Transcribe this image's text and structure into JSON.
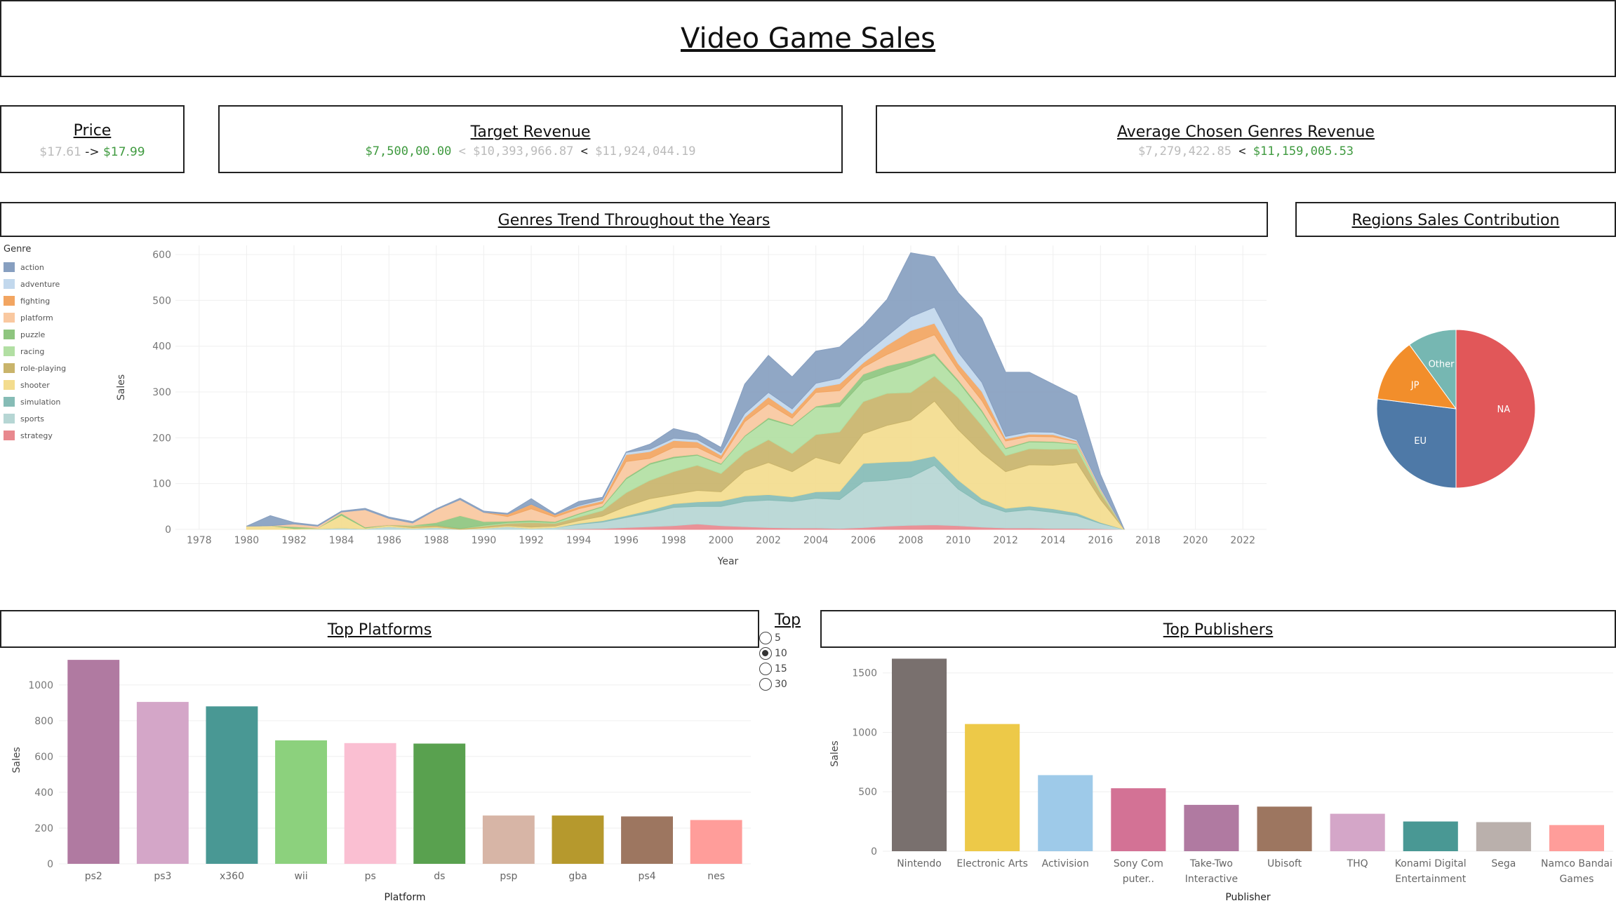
{
  "header": {
    "title": "Video Game Sales"
  },
  "kpi": {
    "price": {
      "title": "Price",
      "old": "$17.61",
      "arrow": "->",
      "new": "$17.99"
    },
    "target": {
      "title": "Target Revenue",
      "target": "$7,500,00.00",
      "lt1": "<",
      "old": "$10,393,966.87",
      "lt2": "<",
      "new": "$11,924,044.19"
    },
    "average": {
      "title": "Average Chosen Genres Revenue",
      "old": "$7,279,422.85",
      "lt": "<",
      "new": "$11,159,005.53"
    }
  },
  "genres_panel": {
    "title": "Genres Trend Throughout the Years",
    "legend_title": "Genre"
  },
  "regions_panel": {
    "title": "Regions Sales Contribution"
  },
  "platforms_panel": {
    "title": "Top Platforms"
  },
  "publishers_panel": {
    "title": "Top Publishers"
  },
  "top_selector": {
    "title": "Top",
    "options": [
      {
        "label": "5",
        "selected": false
      },
      {
        "label": "10",
        "selected": true
      },
      {
        "label": "15",
        "selected": false
      },
      {
        "label": "30",
        "selected": false
      }
    ]
  },
  "chart_data": [
    {
      "id": "genres",
      "type": "area",
      "stacked": true,
      "xlabel": "Year",
      "ylabel": "Sales",
      "xlim": [
        1977,
        2023
      ],
      "ylim": [
        0,
        620
      ],
      "xticks": [
        1978,
        1980,
        1982,
        1984,
        1986,
        1988,
        1990,
        1992,
        1994,
        1996,
        1998,
        2000,
        2002,
        2004,
        2006,
        2008,
        2010,
        2012,
        2014,
        2016,
        2018,
        2020,
        2022
      ],
      "yticks": [
        0,
        100,
        200,
        300,
        400,
        500,
        600
      ],
      "x": [
        1980,
        1981,
        1982,
        1983,
        1984,
        1985,
        1986,
        1987,
        1988,
        1989,
        1990,
        1991,
        1992,
        1993,
        1994,
        1995,
        1996,
        1997,
        1998,
        1999,
        2000,
        2001,
        2002,
        2003,
        2004,
        2005,
        2006,
        2007,
        2008,
        2009,
        2010,
        2011,
        2012,
        2013,
        2014,
        2015,
        2016,
        2017
      ],
      "series": [
        {
          "name": "strategy",
          "color": "#e8888e",
          "values": [
            0,
            0,
            0,
            0,
            0,
            0,
            0,
            0,
            0,
            0,
            0,
            0,
            0,
            0,
            1,
            2,
            4,
            6,
            8,
            12,
            8,
            6,
            4,
            3,
            3,
            2,
            4,
            7,
            9,
            10,
            8,
            5,
            3,
            3,
            2,
            2,
            1,
            0
          ]
        },
        {
          "name": "sports",
          "color": "#b6d6d4",
          "values": [
            0,
            0,
            0,
            1,
            3,
            1,
            6,
            2,
            4,
            0,
            2,
            6,
            2,
            4,
            10,
            14,
            22,
            30,
            40,
            38,
            42,
            55,
            60,
            58,
            65,
            63,
            100,
            100,
            105,
            130,
            80,
            50,
            35,
            40,
            35,
            28,
            12,
            0
          ]
        },
        {
          "name": "simulation",
          "color": "#86bcb6",
          "values": [
            0,
            0,
            0,
            0,
            0,
            0,
            0,
            0,
            0,
            0,
            0,
            0,
            0,
            0,
            2,
            3,
            4,
            6,
            8,
            10,
            12,
            12,
            12,
            10,
            14,
            18,
            40,
            40,
            35,
            20,
            20,
            12,
            8,
            8,
            8,
            6,
            2,
            0
          ]
        },
        {
          "name": "shooter",
          "color": "#f3dc8e",
          "values": [
            7,
            8,
            2,
            2,
            28,
            2,
            3,
            2,
            2,
            0,
            2,
            2,
            3,
            3,
            6,
            10,
            20,
            25,
            20,
            25,
            20,
            55,
            70,
            55,
            75,
            60,
            65,
            80,
            90,
            120,
            110,
            100,
            80,
            90,
            95,
            110,
            50,
            0
          ]
        },
        {
          "name": "role-playing",
          "color": "#c9b46b",
          "values": [
            0,
            0,
            0,
            0,
            0,
            0,
            1,
            3,
            3,
            2,
            3,
            5,
            10,
            6,
            8,
            12,
            30,
            40,
            50,
            55,
            40,
            40,
            50,
            40,
            50,
            70,
            70,
            70,
            60,
            55,
            70,
            60,
            35,
            35,
            35,
            30,
            15,
            0
          ]
        },
        {
          "name": "racing",
          "color": "#b2dfa3",
          "values": [
            0,
            0,
            0,
            0,
            0,
            0,
            0,
            2,
            0,
            0,
            2,
            2,
            2,
            2,
            6,
            8,
            30,
            35,
            30,
            22,
            20,
            35,
            45,
            60,
            60,
            55,
            45,
            45,
            60,
            45,
            35,
            30,
            15,
            15,
            15,
            10,
            5,
            0
          ]
        },
        {
          "name": "puzzle",
          "color": "#8ec57f",
          "values": [
            0,
            0,
            4,
            0,
            4,
            2,
            0,
            0,
            6,
            28,
            8,
            3,
            3,
            2,
            2,
            2,
            3,
            3,
            3,
            2,
            2,
            2,
            3,
            2,
            2,
            10,
            15,
            15,
            10,
            5,
            4,
            4,
            2,
            2,
            2,
            1,
            0,
            0
          ]
        },
        {
          "name": "platform",
          "color": "#f9c8a0",
          "values": [
            0,
            0,
            6,
            4,
            3,
            38,
            14,
            5,
            28,
            35,
            20,
            10,
            25,
            10,
            10,
            6,
            35,
            10,
            20,
            15,
            10,
            30,
            30,
            15,
            30,
            25,
            15,
            25,
            35,
            40,
            20,
            20,
            15,
            10,
            10,
            4,
            2,
            0
          ]
        },
        {
          "name": "fighting",
          "color": "#f2a561",
          "values": [
            0,
            0,
            0,
            0,
            0,
            0,
            0,
            0,
            0,
            0,
            0,
            5,
            10,
            5,
            5,
            5,
            15,
            15,
            15,
            12,
            8,
            10,
            15,
            10,
            10,
            15,
            10,
            20,
            30,
            25,
            15,
            20,
            5,
            5,
            5,
            2,
            1,
            0
          ]
        },
        {
          "name": "adventure",
          "color": "#c2d8ed",
          "values": [
            0,
            0,
            0,
            0,
            0,
            0,
            0,
            0,
            0,
            0,
            0,
            0,
            0,
            0,
            2,
            3,
            5,
            5,
            5,
            5,
            5,
            8,
            10,
            10,
            10,
            12,
            15,
            20,
            30,
            35,
            25,
            20,
            5,
            5,
            5,
            3,
            2,
            0
          ]
        },
        {
          "name": "action",
          "color": "#879fc0",
          "values": [
            0,
            22,
            3,
            2,
            2,
            3,
            3,
            3,
            2,
            3,
            3,
            2,
            12,
            2,
            9,
            5,
            1,
            11,
            21,
            12,
            12,
            64,
            81,
            70,
            70,
            68,
            66,
            80,
            140,
            110,
            130,
            140,
            140,
            130,
            105,
            95,
            30,
            0
          ]
        }
      ]
    },
    {
      "id": "regions",
      "type": "pie",
      "slices": [
        {
          "label": "NA",
          "value": 50,
          "color": "#e15759"
        },
        {
          "label": "EU",
          "value": 27,
          "color": "#4e79a7"
        },
        {
          "label": "JP",
          "value": 13,
          "color": "#f28e2b"
        },
        {
          "label": "Other",
          "value": 10,
          "color": "#76b7b2"
        }
      ]
    },
    {
      "id": "platforms",
      "type": "bar",
      "xlabel": "Platform",
      "ylabel": "Sales",
      "ylim": [
        0,
        1160
      ],
      "yticks": [
        0,
        200,
        400,
        600,
        800,
        1000
      ],
      "categories": [
        "ps2",
        "ps3",
        "x360",
        "wii",
        "ps",
        "ds",
        "psp",
        "gba",
        "ps4",
        "nes"
      ],
      "values": [
        1140,
        905,
        880,
        690,
        675,
        672,
        270,
        270,
        265,
        245
      ],
      "colors": [
        "#b07aa1",
        "#d4a6c8",
        "#499894",
        "#8cd17d",
        "#fabfd2",
        "#59a14f",
        "#d7b5a6",
        "#b6992d",
        "#9d7660",
        "#ff9d9a"
      ]
    },
    {
      "id": "publishers",
      "type": "bar",
      "xlabel": "Publisher",
      "ylabel": "Sales",
      "ylim": [
        0,
        1640
      ],
      "yticks": [
        0,
        500,
        1000,
        1500
      ],
      "categories": [
        "Nintendo",
        "Electronic Arts",
        "Activision",
        "Sony Com puter..",
        "Take-Two Interactive",
        "Ubisoft",
        "THQ",
        "Konami Digital Entertainment",
        "Sega",
        "Namco Bandai Games"
      ],
      "category_lines": [
        [
          "Nintendo"
        ],
        [
          "Electronic Arts"
        ],
        [
          "Activision"
        ],
        [
          "Sony Com",
          "puter.."
        ],
        [
          "Take-Two",
          "Interactive"
        ],
        [
          "Ubisoft"
        ],
        [
          "THQ"
        ],
        [
          "Konami Digital",
          "Entertainment"
        ],
        [
          "Sega"
        ],
        [
          "Namco Bandai",
          "Games"
        ]
      ],
      "values": [
        1620,
        1070,
        640,
        530,
        390,
        375,
        315,
        250,
        245,
        220
      ],
      "colors": [
        "#79706e",
        "#edc948",
        "#9ecae9",
        "#d37295",
        "#b07aa1",
        "#9d7660",
        "#d4a6c8",
        "#499894",
        "#bab0ac",
        "#ff9d9a"
      ]
    }
  ]
}
